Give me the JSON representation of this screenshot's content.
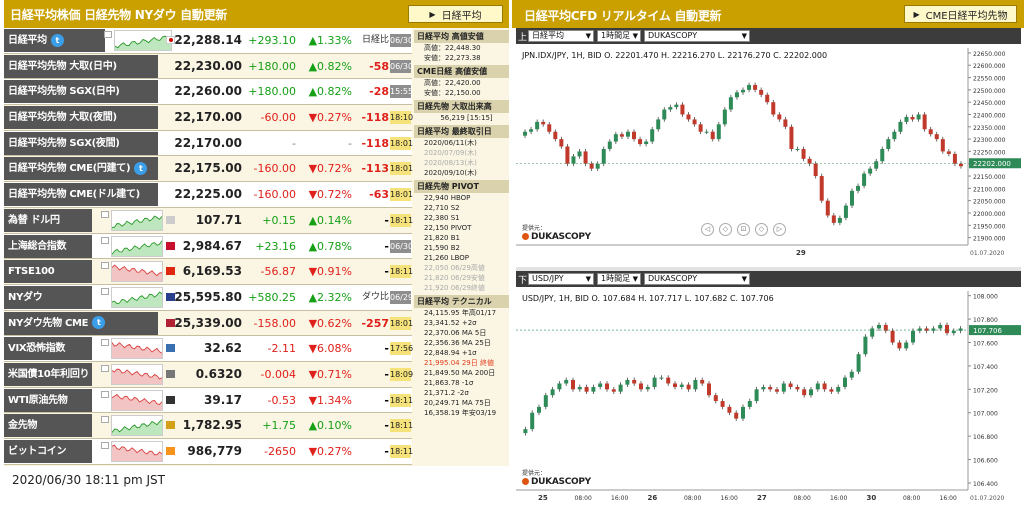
{
  "left_header": {
    "title": "日経平均株価 日経先物 NYダウ 自動更新",
    "button": "日経平均"
  },
  "right_header": {
    "title": "日経平均CFD リアルタイム 自動更新",
    "button": "CME日経平均先物"
  },
  "rows": [
    {
      "name": "日経平均",
      "twitter": true,
      "spark": true,
      "price": "22,288.14",
      "change": "+293.10",
      "pct": "▲1.33%",
      "extra": "日経比",
      "time": "06/30",
      "dir": "up",
      "tm": "g"
    },
    {
      "name": "日経平均先物 大取(日中)",
      "twitter": false,
      "spark": false,
      "price": "22,230.00",
      "change": "+180.00",
      "pct": "▲0.82%",
      "extra": "-58",
      "time": "06/30",
      "dir": "up",
      "tm": "g"
    },
    {
      "name": "日経平均先物 SGX(日中)",
      "twitter": false,
      "spark": false,
      "price": "22,260.00",
      "change": "+180.00",
      "pct": "▲0.82%",
      "extra": "-28",
      "time": "15:55",
      "dir": "up",
      "tm": "g"
    },
    {
      "name": "日経平均先物 大取(夜間)",
      "twitter": false,
      "spark": false,
      "price": "22,170.00",
      "change": "-60.00",
      "pct": "▼0.27%",
      "extra": "-118",
      "time": "18:10",
      "dir": "dn",
      "tm": "y"
    },
    {
      "name": "日経平均先物 SGX(夜間)",
      "twitter": false,
      "spark": false,
      "price": "22,170.00",
      "change": "-",
      "pct": "-",
      "extra": "-118",
      "time": "18:01",
      "dir": "neu",
      "tm": "y"
    },
    {
      "name": "日経平均先物 CME(円建て)",
      "twitter": true,
      "spark": false,
      "price": "22,175.00",
      "change": "-160.00",
      "pct": "▼0.72%",
      "extra": "-113",
      "time": "18:01",
      "dir": "dn",
      "tm": "y"
    },
    {
      "name": "日経平均先物 CME(ドル建て)",
      "twitter": false,
      "spark": false,
      "price": "22,225.00",
      "change": "-160.00",
      "pct": "▼0.72%",
      "extra": "-63",
      "time": "18:01",
      "dir": "dn",
      "tm": "y"
    },
    {
      "name": "為替 ドル円",
      "twitter": false,
      "spark": true,
      "price": "107.71",
      "change": "+0.15",
      "pct": "▲0.14%",
      "extra": "-",
      "time": "18:11",
      "dir": "up",
      "tm": "y"
    },
    {
      "name": "上海総合指数",
      "twitter": false,
      "spark": true,
      "price": "2,984.67",
      "change": "+23.16",
      "pct": "▲0.78%",
      "extra": "-",
      "time": "06/30",
      "dir": "up",
      "tm": "g"
    },
    {
      "name": "FTSE100",
      "twitter": false,
      "spark": true,
      "price": "6,169.53",
      "change": "-56.87",
      "pct": "▼0.91%",
      "extra": "-",
      "time": "18:11",
      "dir": "dn",
      "tm": "y"
    },
    {
      "name": "NYダウ",
      "twitter": false,
      "spark": true,
      "price": "25,595.80",
      "change": "+580.25",
      "pct": "▲2.32%",
      "extra": "ダウ比",
      "time": "06/29",
      "dir": "up",
      "tm": "g"
    },
    {
      "name": "NYダウ先物 CME",
      "twitter": true,
      "spark": false,
      "price": "25,339.00",
      "change": "-158.00",
      "pct": "▼0.62%",
      "extra": "-257",
      "time": "18:01",
      "dir": "dn",
      "tm": "y"
    },
    {
      "name": "VIX恐怖指数",
      "twitter": false,
      "spark": true,
      "price": "32.62",
      "change": "-2.11",
      "pct": "▼6.08%",
      "extra": "-",
      "time": "17:56",
      "dir": "dn",
      "tm": "y"
    },
    {
      "name": "米国債10年利回り",
      "twitter": false,
      "spark": true,
      "price": "0.6320",
      "change": "-0.004",
      "pct": "▼0.71%",
      "extra": "-",
      "time": "18:09",
      "dir": "dn",
      "tm": "y"
    },
    {
      "name": "WTI原油先物",
      "twitter": false,
      "spark": true,
      "price": "39.17",
      "change": "-0.53",
      "pct": "▼1.34%",
      "extra": "-",
      "time": "18:11",
      "dir": "dn",
      "tm": "y"
    },
    {
      "name": "金先物",
      "twitter": false,
      "spark": true,
      "price": "1,782.95",
      "change": "+1.75",
      "pct": "▲0.10%",
      "extra": "-",
      "time": "18:11",
      "dir": "up",
      "tm": "y"
    },
    {
      "name": "ビットコイン",
      "twitter": false,
      "spark": true,
      "price": "986,779",
      "change": "-2650",
      "pct": "▼0.27%",
      "extra": "-",
      "time": "18:11",
      "dir": "dn",
      "tm": "y"
    }
  ],
  "side": [
    {
      "title": "日経平均 高値安値",
      "lines": [
        {
          "t": "高値：22,448.30",
          "c": ""
        },
        {
          "t": "安値：22,273.38",
          "c": ""
        }
      ]
    },
    {
      "title": "CME日経 高値安値",
      "lines": [
        {
          "t": "高値：22,420.00",
          "c": ""
        },
        {
          "t": "安値：22,150.00",
          "c": ""
        }
      ]
    },
    {
      "title": "日経先物 大取出来高",
      "lines": [
        {
          "t": "56,219 [15:15]",
          "c": "center"
        }
      ]
    },
    {
      "title": "日経平均 最終取引日",
      "lines": [
        {
          "t": "2020/06/11(木)",
          "c": ""
        },
        {
          "t": "2020/07/09(木)",
          "c": "g"
        },
        {
          "t": "2020/08/13(木)",
          "c": "g"
        },
        {
          "t": "2020/09/10(木)",
          "c": ""
        }
      ]
    },
    {
      "title": "日経先物 PIVOT",
      "lines": [
        {
          "t": "22,940 HBOP",
          "c": ""
        },
        {
          "t": "22,710 S2",
          "c": ""
        },
        {
          "t": "22,380 S1",
          "c": ""
        },
        {
          "t": "22,150 PIVOT",
          "c": ""
        },
        {
          "t": "21,820 B1",
          "c": ""
        },
        {
          "t": "21,590 B2",
          "c": ""
        },
        {
          "t": "21,260 LBOP",
          "c": ""
        },
        {
          "t": "22,050 06/29高値",
          "c": "g"
        },
        {
          "t": "21,820 06/29安値",
          "c": "g"
        },
        {
          "t": "21,920 06/29終値",
          "c": "g"
        }
      ]
    },
    {
      "title": "日経平均 テクニカル",
      "lines": [
        {
          "t": "24,115.95  年高01/17",
          "c": ""
        },
        {
          "t": "23,341.52  +2σ",
          "c": ""
        },
        {
          "t": "22,370.06  MA 5日",
          "c": ""
        },
        {
          "t": "22,356.36  MA 25日",
          "c": ""
        },
        {
          "t": "22,848.94  +1σ",
          "c": ""
        },
        {
          "t": "21,995.04  29日 終値",
          "c": "r"
        },
        {
          "t": "21,849.50  MA 200日",
          "c": ""
        },
        {
          "t": "21,863.78  -1σ",
          "c": ""
        },
        {
          "t": "21,371.2  -2σ",
          "c": ""
        },
        {
          "t": "20,249.71  MA 75日",
          "c": ""
        },
        {
          "t": "16,358.19  年安03/19",
          "c": ""
        }
      ]
    }
  ],
  "timestamp": "2020/06/30 18:11 pm JST",
  "charts": [
    {
      "symbol": "日経平均",
      "interval": "1時間足",
      "source": "DUKASCOPY",
      "ohlc": "JPN.IDX/JPY, 1H, BID   O. 22201.470 H. 22216.270 L. 22176.270 C. 22202.000",
      "last": "22202.000",
      "yticks": [
        "22650.000",
        "22600.000",
        "22550.000",
        "22500.000",
        "22450.000",
        "22400.000",
        "22350.000",
        "22300.000",
        "22250.000",
        "22200.000",
        "22150.000",
        "22100.000",
        "22050.000",
        "22000.000",
        "21950.000",
        "21900.000"
      ],
      "xlabels": [
        "29"
      ],
      "date": "01.07.2020",
      "ymin": 21870,
      "ymax": 22670,
      "closes": [
        22330,
        22340,
        22370,
        22360,
        22330,
        22300,
        22270,
        22200,
        22230,
        22250,
        22200,
        22180,
        22200,
        22260,
        22290,
        22320,
        22310,
        22330,
        22300,
        22280,
        22290,
        22340,
        22380,
        22420,
        22430,
        22440,
        22400,
        22380,
        22360,
        22330,
        22330,
        22300,
        22360,
        22420,
        22470,
        22490,
        22500,
        22520,
        22500,
        22480,
        22450,
        22400,
        22380,
        22350,
        22260,
        22260,
        22220,
        22200,
        22150,
        22050,
        21990,
        21960,
        21980,
        22030,
        22090,
        22110,
        22160,
        22180,
        22210,
        22260,
        22300,
        22330,
        22370,
        22390,
        22380,
        22400,
        22340,
        22320,
        22300,
        22250,
        22240,
        22200,
        22190
      ]
    },
    {
      "symbol": "USD/JPY",
      "interval": "1時間足",
      "source": "DUKASCOPY",
      "ohlc": "USD/JPY, 1H, BID   O. 107.684 H. 107.717 L. 107.682 C. 107.706",
      "last": "107.706",
      "yticks": [
        "108.000",
        "107.800",
        "107.600",
        "107.400",
        "107.200",
        "107.000",
        "106.800",
        "106.600",
        "106.400"
      ],
      "xlabels": [
        "25",
        "08:00",
        "16:00",
        "26",
        "08:00",
        "16:00",
        "27",
        "08:00",
        "16:00",
        "30",
        "08:00",
        "16:00"
      ],
      "date": "01.07.2020",
      "ymin": 106.34,
      "ymax": 108.04,
      "closes": [
        106.86,
        107.0,
        107.05,
        107.15,
        107.2,
        107.25,
        107.28,
        107.2,
        107.22,
        107.18,
        107.22,
        107.25,
        107.2,
        107.18,
        107.24,
        107.28,
        107.25,
        107.2,
        107.22,
        107.3,
        107.3,
        107.25,
        107.22,
        107.24,
        107.2,
        107.28,
        107.25,
        107.15,
        107.1,
        107.05,
        107.0,
        106.95,
        107.05,
        107.1,
        107.2,
        107.22,
        107.2,
        107.18,
        107.25,
        107.22,
        107.2,
        107.15,
        107.2,
        107.25,
        107.2,
        107.18,
        107.22,
        107.3,
        107.35,
        107.5,
        107.65,
        107.72,
        107.75,
        107.7,
        107.6,
        107.55,
        107.6,
        107.7,
        107.72,
        107.7,
        107.72,
        107.75,
        107.68,
        107.7,
        107.72
      ]
    }
  ],
  "logo": {
    "label": "提供元：",
    "name": "DUKASCOPY"
  }
}
